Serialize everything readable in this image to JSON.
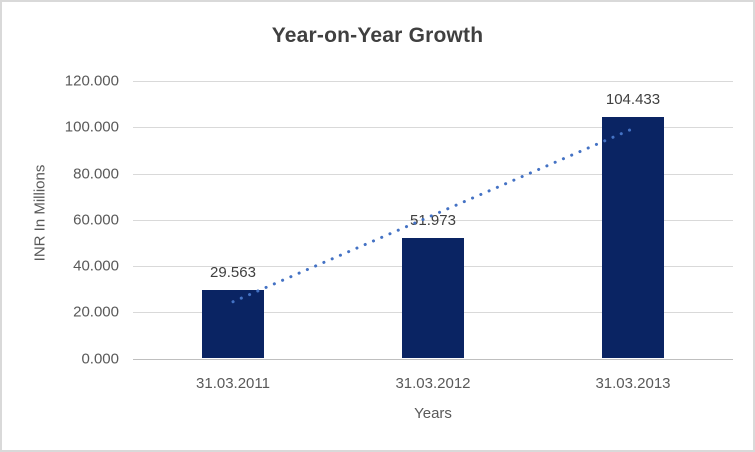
{
  "chart_data": {
    "type": "bar",
    "title": "Year-on-Year Growth",
    "categories": [
      "31.03.2011",
      "31.03.2012",
      "31.03.2013"
    ],
    "values": [
      29.563,
      51.973,
      104.433
    ],
    "data_labels": [
      "29.563",
      "51.973",
      "104.433"
    ],
    "xlabel": "Years",
    "ylabel": "INR In Millions",
    "ylim": [
      0,
      120
    ],
    "yticks": [
      {
        "value": 0,
        "label": "0.000"
      },
      {
        "value": 20,
        "label": "20.000"
      },
      {
        "value": 40,
        "label": "40.000"
      },
      {
        "value": 60,
        "label": "60.000"
      },
      {
        "value": 80,
        "label": "80.000"
      },
      {
        "value": 100,
        "label": "100.000"
      },
      {
        "value": 120,
        "label": "120.000"
      }
    ],
    "grid": true,
    "legend": "none",
    "trendline": {
      "type": "linear",
      "style": "dotted",
      "color": "#4472C4"
    },
    "colors": {
      "bar": "#0A2463",
      "gridline": "#D9D9D9",
      "axis_line": "#BFBFBF",
      "title_text": "#404040",
      "tick_text": "#595959",
      "data_label_text": "#404040",
      "border": "#D9D9D9",
      "background": "#FFFFFF"
    }
  }
}
